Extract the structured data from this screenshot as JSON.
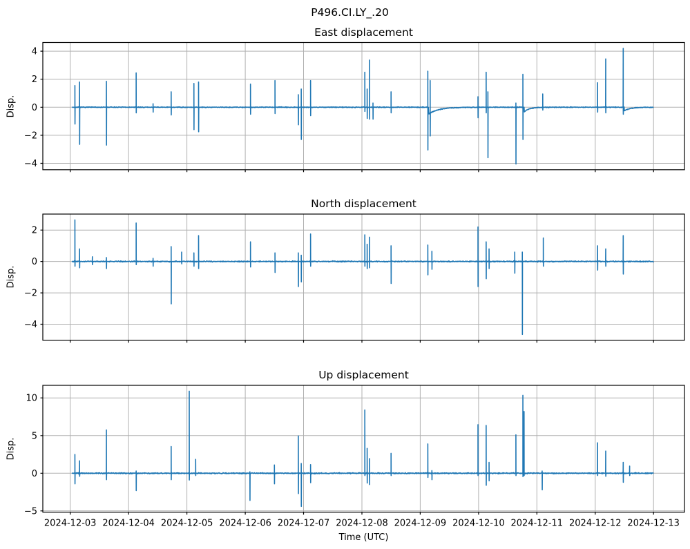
{
  "figure": {
    "suptitle": "P496.CI.LY_.20",
    "xlabel": "Time (UTC)",
    "ylabel": "Disp.",
    "line_color": "#1f77b4",
    "grid_color": "#b0b0b0",
    "spine_color": "#000000",
    "background": "#ffffff",
    "xtick_labels": [
      "2024-12-03",
      "2024-12-04",
      "2024-12-05",
      "2024-12-06",
      "2024-12-07",
      "2024-12-08",
      "2024-12-09",
      "2024-12-10",
      "2024-12-11",
      "2024-12-12",
      "2024-12-13"
    ],
    "xlim_days": [
      -0.47,
      10.53
    ]
  },
  "chart_data": [
    {
      "type": "line",
      "title": "East displacement",
      "ylabel": "Disp.",
      "legend": "none",
      "grid": true,
      "ylim": [
        -4.46,
        4.62
      ],
      "yticks": [
        -4,
        -2,
        0,
        2,
        4
      ],
      "x_start_day": 0.03,
      "x_end_day": 10.0,
      "noise_amp": 0.04,
      "spikes": [
        [
          0.08,
          1.55,
          -1.2
        ],
        [
          0.16,
          1.8,
          -2.65
        ],
        [
          0.62,
          1.85,
          -2.7
        ],
        [
          1.13,
          2.45,
          -0.4
        ],
        [
          1.42,
          0.25,
          -0.35
        ],
        [
          1.73,
          1.1,
          -0.55
        ],
        [
          2.12,
          1.7,
          -1.6
        ],
        [
          2.2,
          1.8,
          -1.75
        ],
        [
          3.09,
          1.65,
          -0.5
        ],
        [
          3.51,
          1.9,
          -0.45
        ],
        [
          3.91,
          0.9,
          -1.25
        ],
        [
          3.96,
          1.3,
          -2.3
        ],
        [
          4.12,
          1.9,
          -0.6
        ],
        [
          5.05,
          2.5,
          -0.3
        ],
        [
          5.09,
          1.3,
          -0.8
        ],
        [
          5.13,
          3.37,
          -0.85
        ],
        [
          5.19,
          0.3,
          -0.85
        ],
        [
          5.5,
          1.1,
          -0.4
        ],
        [
          6.13,
          2.57,
          -3.05
        ],
        [
          6.17,
          1.9,
          -2.05
        ],
        [
          6.99,
          0.75,
          -0.75
        ],
        [
          7.13,
          2.5,
          -0.4
        ],
        [
          7.16,
          1.1,
          -3.6
        ],
        [
          7.64,
          0.3,
          -4.05
        ],
        [
          7.76,
          2.35,
          -2.3
        ],
        [
          8.1,
          0.95,
          -0.2
        ],
        [
          9.04,
          1.75,
          -0.35
        ],
        [
          9.18,
          3.45,
          -0.4
        ],
        [
          9.48,
          4.2,
          -0.5
        ]
      ],
      "tails": [
        [
          6.14,
          -0.5,
          0.5
        ],
        [
          7.78,
          -0.35,
          0.25
        ],
        [
          9.5,
          -0.25,
          0.3
        ]
      ]
    },
    {
      "type": "line",
      "title": "North displacement",
      "ylabel": "Disp.",
      "legend": "none",
      "grid": true,
      "ylim": [
        -5.02,
        3.02
      ],
      "yticks": [
        -4,
        -2,
        0,
        2
      ],
      "x_start_day": 0.03,
      "x_end_day": 10.0,
      "noise_amp": 0.045,
      "spikes": [
        [
          0.08,
          2.65,
          -0.3
        ],
        [
          0.16,
          0.8,
          -0.4
        ],
        [
          0.38,
          0.3,
          -0.2
        ],
        [
          0.62,
          0.25,
          -0.45
        ],
        [
          1.13,
          2.45,
          -0.2
        ],
        [
          1.42,
          0.2,
          -0.3
        ],
        [
          1.73,
          0.95,
          -2.7
        ],
        [
          1.91,
          0.6,
          -0.15
        ],
        [
          2.12,
          0.55,
          -0.3
        ],
        [
          2.2,
          1.65,
          -0.45
        ],
        [
          3.09,
          1.25,
          -0.35
        ],
        [
          3.51,
          0.55,
          -0.7
        ],
        [
          3.91,
          0.55,
          -1.6
        ],
        [
          3.96,
          0.4,
          -1.3
        ],
        [
          4.12,
          1.75,
          -0.3
        ],
        [
          5.05,
          1.7,
          -0.3
        ],
        [
          5.09,
          1.1,
          -0.45
        ],
        [
          5.13,
          1.55,
          -0.4
        ],
        [
          5.5,
          1.0,
          -1.4
        ],
        [
          6.13,
          1.05,
          -0.85
        ],
        [
          6.2,
          0.65,
          -0.5
        ],
        [
          6.99,
          2.2,
          -1.6
        ],
        [
          7.13,
          1.25,
          -1.1
        ],
        [
          7.18,
          0.8,
          -0.45
        ],
        [
          7.62,
          0.6,
          -0.75
        ],
        [
          7.75,
          0.6,
          -4.65
        ],
        [
          8.11,
          1.5,
          -0.3
        ],
        [
          9.04,
          1.0,
          -0.55
        ],
        [
          9.18,
          0.8,
          -0.3
        ],
        [
          9.48,
          1.65,
          -0.8
        ]
      ],
      "tails": []
    },
    {
      "type": "line",
      "title": "Up displacement",
      "ylabel": "Disp.",
      "legend": "none",
      "grid": true,
      "ylim": [
        -5.17,
        11.67
      ],
      "yticks": [
        -5,
        0,
        5,
        10
      ],
      "x_start_day": 0.03,
      "x_end_day": 10.0,
      "noise_amp": 0.1,
      "spikes": [
        [
          0.08,
          2.5,
          -1.4
        ],
        [
          0.16,
          1.65,
          -0.4
        ],
        [
          0.62,
          5.75,
          -0.85
        ],
        [
          1.13,
          0.3,
          -2.3
        ],
        [
          1.73,
          3.55,
          -0.85
        ],
        [
          2.04,
          10.9,
          -0.9
        ],
        [
          2.15,
          1.85,
          -0.3
        ],
        [
          3.08,
          0.2,
          -3.6
        ],
        [
          3.5,
          1.1,
          -1.4
        ],
        [
          3.91,
          4.95,
          -2.7
        ],
        [
          3.96,
          1.3,
          -4.4
        ],
        [
          4.12,
          1.15,
          -1.25
        ],
        [
          5.05,
          8.4,
          -0.3
        ],
        [
          5.09,
          3.3,
          -1.3
        ],
        [
          5.13,
          1.95,
          -1.5
        ],
        [
          5.5,
          2.65,
          -0.3
        ],
        [
          6.13,
          3.9,
          -0.55
        ],
        [
          6.2,
          0.35,
          -0.85
        ],
        [
          6.99,
          6.45,
          -0.3
        ],
        [
          7.13,
          6.35,
          -1.6
        ],
        [
          7.18,
          1.45,
          -1.0
        ],
        [
          7.64,
          5.1,
          -0.3
        ],
        [
          7.76,
          10.35,
          -0.45
        ],
        [
          7.78,
          8.2,
          -0.3
        ],
        [
          8.09,
          0.3,
          -2.2
        ],
        [
          9.04,
          4.05,
          -0.3
        ],
        [
          9.18,
          2.95,
          -0.4
        ],
        [
          9.48,
          1.45,
          -1.2
        ],
        [
          9.59,
          0.95,
          -0.3
        ]
      ],
      "tails": []
    }
  ]
}
